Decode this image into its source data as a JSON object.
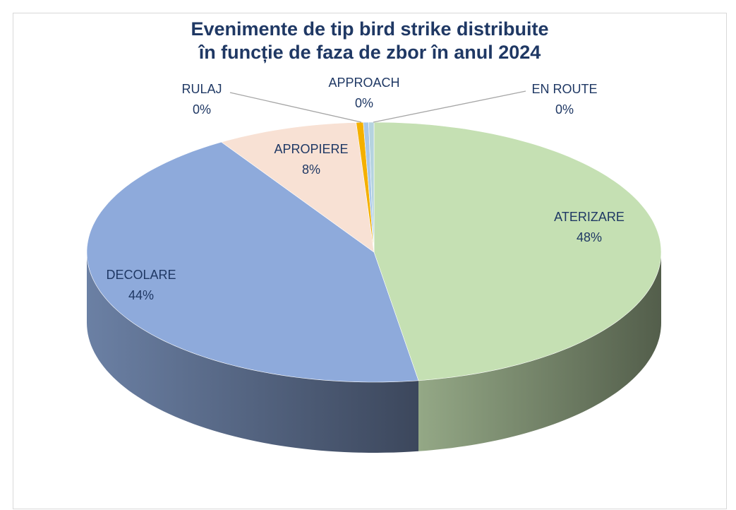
{
  "chart_data": {
    "type": "pie3d",
    "title": [
      "Evenimente de tip bird strike distribuite",
      "în funcție de faza de zbor în anul 2024"
    ],
    "categories": [
      "ATERIZARE",
      "DECOLARE",
      "APROPIERE",
      "RULAJ",
      "APPROACH",
      "EN ROUTE"
    ],
    "values": [
      48,
      44,
      8,
      0.4,
      0.3,
      0.3
    ],
    "value_labels": [
      "48%",
      "44%",
      "8%",
      "0%",
      "0%",
      "0%"
    ],
    "colors": [
      "#c5e0b3",
      "#8eaadb",
      "#f8e1d4",
      "#f4b000",
      "#a9c8e8",
      "#b5d3df"
    ]
  }
}
